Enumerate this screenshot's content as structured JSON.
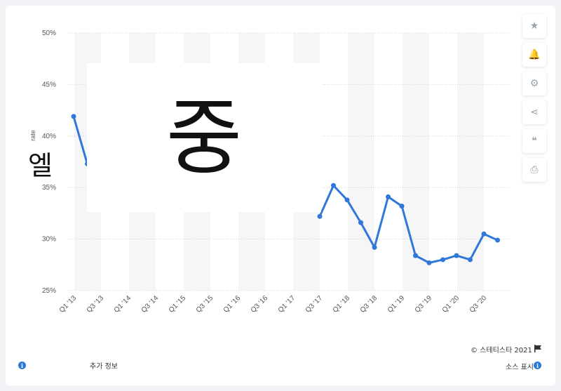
{
  "chart_data": {
    "type": "line",
    "title": "",
    "xlabel": "",
    "ylabel": "rate",
    "ylim": [
      25,
      50
    ],
    "y_ticks": [
      "25%",
      "30%",
      "35%",
      "40%",
      "45%",
      "50%"
    ],
    "y_tick_values": [
      25,
      30,
      35,
      40,
      45,
      50
    ],
    "x_tick_labels": [
      "Q1 '13",
      "Q3 '13",
      "Q1 '14",
      "Q3 '14",
      "Q1 '15",
      "Q3 '15",
      "Q1 '16",
      "Q3 '16",
      "Q1 '17",
      "Q3 '17",
      "Q1 '18",
      "Q3 '18",
      "Q1 '19",
      "Q3 '19",
      "Q1 '20",
      "Q3 '20"
    ],
    "grid": "horizontal dotted",
    "line_color": "#2f77d9",
    "series": [
      {
        "segments": [
          {
            "x_index": [
              0,
              1
            ],
            "values": [
              41.9,
              37.3
            ]
          },
          {
            "x_index": [
              18,
              19,
              20,
              21,
              22,
              23,
              24,
              25,
              26,
              27,
              28,
              29,
              30,
              31
            ],
            "values": [
              32.2,
              35.2,
              33.8,
              31.6,
              29.2,
              34.1,
              33.2,
              28.4,
              27.7,
              28.0,
              28.4,
              28.0,
              30.5,
              29.9
            ]
          }
        ]
      }
    ]
  },
  "overlay": {
    "glyph": "중",
    "side_glyph": "엘"
  },
  "sidebar": {
    "icons": [
      "star-icon",
      "bell-icon",
      "gear-icon",
      "share-icon",
      "quote-icon",
      "print-icon"
    ],
    "glyphs": [
      "★",
      "🔔",
      "⚙",
      "⋖",
      "❝",
      "⎙"
    ]
  },
  "footer": {
    "copyright": "© 스테티스타 2021",
    "more_info": "추가 정보",
    "source": "소스 표시"
  }
}
